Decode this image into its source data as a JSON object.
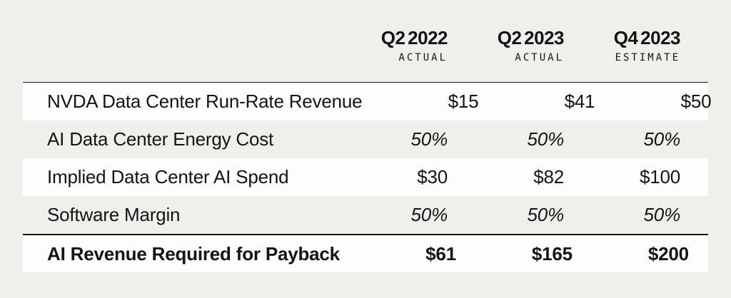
{
  "colors": {
    "background": "#f0efeb",
    "highlight_row": "#fdfdfd",
    "text": "#141414",
    "rule": "#1a1a1a"
  },
  "chart_data": {
    "type": "table",
    "columns": [
      {
        "title": "Q2 2022",
        "subtitle": "ACTUAL"
      },
      {
        "title": "Q2 2023",
        "subtitle": "ACTUAL"
      },
      {
        "title": "Q4 2023",
        "subtitle": "ESTIMATE"
      }
    ],
    "rows": [
      {
        "label": "NVDA Data Center Run-Rate Revenue",
        "values": [
          "$15",
          "$41",
          "$50"
        ],
        "emphasis": "none"
      },
      {
        "label": "AI Data Center Energy Cost",
        "values": [
          "50%",
          "50%",
          "50%"
        ],
        "emphasis": "italic"
      },
      {
        "label": "Implied Data Center AI Spend",
        "values": [
          "$30",
          "$82",
          "$100"
        ],
        "emphasis": "none"
      },
      {
        "label": "Software Margin",
        "values": [
          "50%",
          "50%",
          "50%"
        ],
        "emphasis": "italic"
      },
      {
        "label": "AI Revenue Required for Payback",
        "values": [
          "$61",
          "$165",
          "$200"
        ],
        "emphasis": "bold"
      }
    ],
    "layout": {
      "alternating_highlight": "rows 1,3,5 white on gray page background",
      "value_alignment": "right",
      "rules": [
        "thin rule above first row",
        "thick rule above last row"
      ]
    }
  }
}
